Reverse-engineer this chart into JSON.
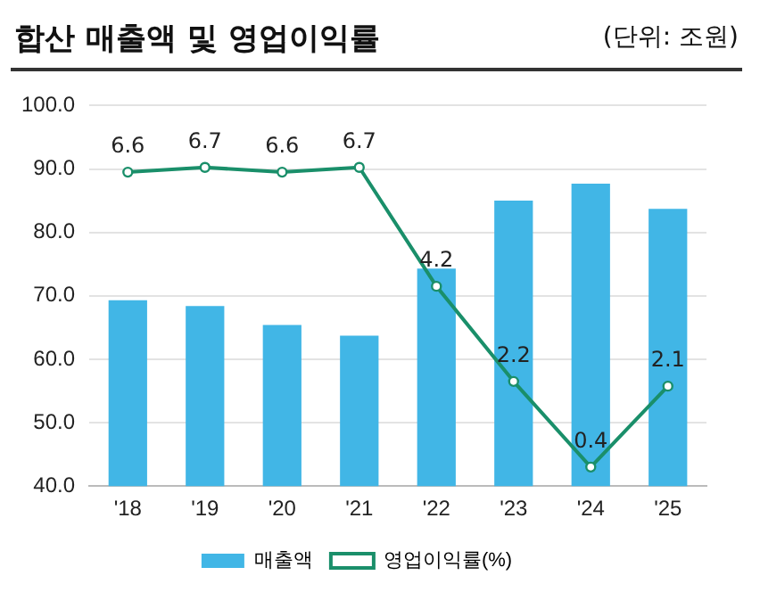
{
  "chart_data": {
    "type": "bar",
    "title": "합산 매출액 및 영업이익률",
    "subtitle": "(단위: 조원)",
    "categories": [
      "'18",
      "'19",
      "'20",
      "'21",
      "'22",
      "'23",
      "'24",
      "'25"
    ],
    "series": [
      {
        "name": "매출액",
        "color": "#41b6e6",
        "values": [
          69.3,
          68.4,
          65.4,
          63.7,
          74.3,
          85.0,
          87.7,
          83.7
        ]
      },
      {
        "name": "영업이익률(%)",
        "type": "line",
        "axis": "y2",
        "color": "#1a8f6a",
        "values": [
          6.6,
          6.7,
          6.6,
          6.7,
          4.2,
          2.2,
          0.4,
          2.1
        ],
        "value_labels": [
          "6.6",
          "6.7",
          "6.6",
          "6.7",
          "4.2",
          "2.2",
          "0.4",
          "2.1"
        ]
      }
    ],
    "ylim": [
      40,
      100
    ],
    "yticks": [
      {
        "value": 40,
        "label": "40.0"
      },
      {
        "value": 50,
        "label": "50.0"
      },
      {
        "value": 60,
        "label": "60.0"
      },
      {
        "value": 70,
        "label": "70.0"
      },
      {
        "value": 80,
        "label": "80.0"
      },
      {
        "value": 90,
        "label": "90.0"
      },
      {
        "value": 100,
        "label": "100.0"
      }
    ],
    "y2lim": [
      0,
      8
    ],
    "grid": "y",
    "legend": "bottom",
    "marker": "circle"
  }
}
